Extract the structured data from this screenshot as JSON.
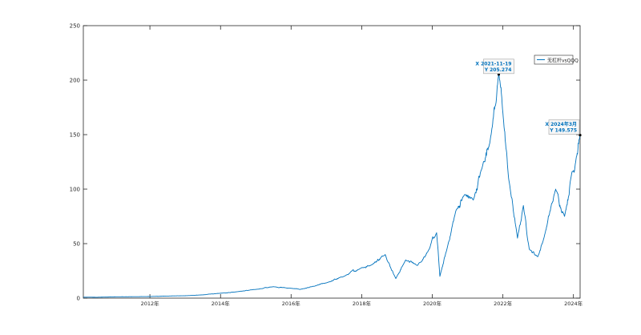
{
  "chart_data": {
    "type": "line",
    "title": "",
    "xlabel": "",
    "ylabel": "",
    "xlim": [
      "2010-02-11",
      "2024-03-10"
    ],
    "ylim": [
      0,
      250
    ],
    "yticks": [
      0,
      50,
      100,
      150,
      200,
      250
    ],
    "ytick_labels": [
      "0",
      "50",
      "100",
      "150",
      "200",
      "250"
    ],
    "xticks": [
      "2012-01-01",
      "2014-01-01",
      "2016-01-01",
      "2018-01-01",
      "2020-01-01",
      "2022-01-01",
      "2024-01-01"
    ],
    "xtick_labels": [
      "2012年",
      "2014年",
      "2016年",
      "2018年",
      "2020年",
      "2022年",
      "2024年"
    ],
    "grid": false,
    "legend": {
      "position": "top-right",
      "entries": [
        "无杠杆vsQQQ"
      ]
    },
    "series": [
      {
        "name": "无杠杆vsQQQ",
        "color": "#0072BD",
        "points": [
          [
            "2010-02-11",
            0.9
          ],
          [
            "2010-07-01",
            0.8
          ],
          [
            "2011-01-01",
            1.2
          ],
          [
            "2011-07-01",
            1.3
          ],
          [
            "2012-01-01",
            1.5
          ],
          [
            "2012-07-01",
            1.9
          ],
          [
            "2013-01-01",
            2.2
          ],
          [
            "2013-07-01",
            3.0
          ],
          [
            "2014-01-01",
            4.5
          ],
          [
            "2014-07-01",
            6.0
          ],
          [
            "2015-01-01",
            8.0
          ],
          [
            "2015-07-01",
            10.5
          ],
          [
            "2016-01-01",
            9.0
          ],
          [
            "2016-04-01",
            8.0
          ],
          [
            "2016-09-01",
            11.0
          ],
          [
            "2017-01-01",
            14.0
          ],
          [
            "2017-07-01",
            20.0
          ],
          [
            "2018-01-01",
            28.0
          ],
          [
            "2018-04-01",
            30.0
          ],
          [
            "2018-09-01",
            40.0
          ],
          [
            "2018-12-20",
            18.0
          ],
          [
            "2019-04-01",
            35.0
          ],
          [
            "2019-08-01",
            30.0
          ],
          [
            "2019-12-01",
            45.0
          ],
          [
            "2020-02-15",
            60.0
          ],
          [
            "2020-03-20",
            20.0
          ],
          [
            "2020-06-01",
            45.0
          ],
          [
            "2020-09-01",
            80.0
          ],
          [
            "2020-12-01",
            95.0
          ],
          [
            "2021-03-01",
            90.0
          ],
          [
            "2021-06-01",
            120.0
          ],
          [
            "2021-09-01",
            150.0
          ],
          [
            "2021-11-19",
            205.274
          ],
          [
            "2022-01-01",
            170.0
          ],
          [
            "2022-03-01",
            110.0
          ],
          [
            "2022-06-01",
            55.0
          ],
          [
            "2022-08-01",
            85.0
          ],
          [
            "2022-10-01",
            45.0
          ],
          [
            "2022-12-28",
            38.0
          ],
          [
            "2023-03-01",
            55.0
          ],
          [
            "2023-07-01",
            100.0
          ],
          [
            "2023-10-01",
            75.0
          ],
          [
            "2023-12-15",
            115.0
          ],
          [
            "2024-02-01",
            130.0
          ],
          [
            "2024-03-10",
            149.575
          ]
        ]
      }
    ],
    "annotations": [
      {
        "x_label": "X 2021-11-19",
        "y_label": "Y 205.274",
        "x": "2021-11-19",
        "y": 205.274
      },
      {
        "x_label": "X 2024年3月",
        "y_label": "Y 149.575",
        "x": "2024-03-10",
        "y": 149.575
      }
    ]
  }
}
